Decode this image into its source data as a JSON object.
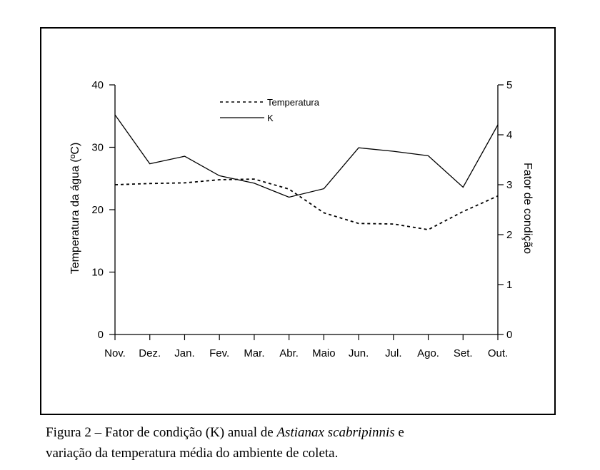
{
  "chart_data": {
    "type": "line",
    "categories": [
      "Nov.",
      "Dez.",
      "Jan.",
      "Fev.",
      "Mar.",
      "Abr.",
      "Maio",
      "Jun.",
      "Jul.",
      "Ago.",
      "Set.",
      "Out."
    ],
    "series": [
      {
        "name": "Temperatura",
        "axis": "left",
        "style": "dashed",
        "values": [
          24.0,
          24.2,
          24.3,
          24.8,
          24.9,
          23.3,
          19.5,
          17.8,
          17.7,
          16.8,
          19.7,
          22.2
        ]
      },
      {
        "name": "K",
        "axis": "right",
        "style": "solid",
        "values": [
          4.4,
          3.42,
          3.57,
          3.18,
          3.03,
          2.75,
          2.92,
          3.74,
          3.67,
          3.58,
          2.95,
          4.2
        ]
      }
    ],
    "ylabel": "Temperatura da água (ºC)",
    "ylabel_right": "Fator de condição",
    "ylim": [
      0,
      40
    ],
    "ylim_right": [
      0,
      5
    ],
    "yticks": [
      "0",
      "10",
      "20",
      "30",
      "40"
    ],
    "yticks_right": [
      "0",
      "1",
      "2",
      "3",
      "4",
      "5"
    ],
    "legend_position": "top-center",
    "grid": false
  },
  "caption": {
    "prefix": "Figura 2 – Fator de condição (K) anual de ",
    "species": "Astianax scabripinnis",
    "suffix": " e",
    "line2": "variação da temperatura média do ambiente de coleta."
  },
  "colors": {
    "line": "#000000",
    "background": "#ffffff"
  }
}
